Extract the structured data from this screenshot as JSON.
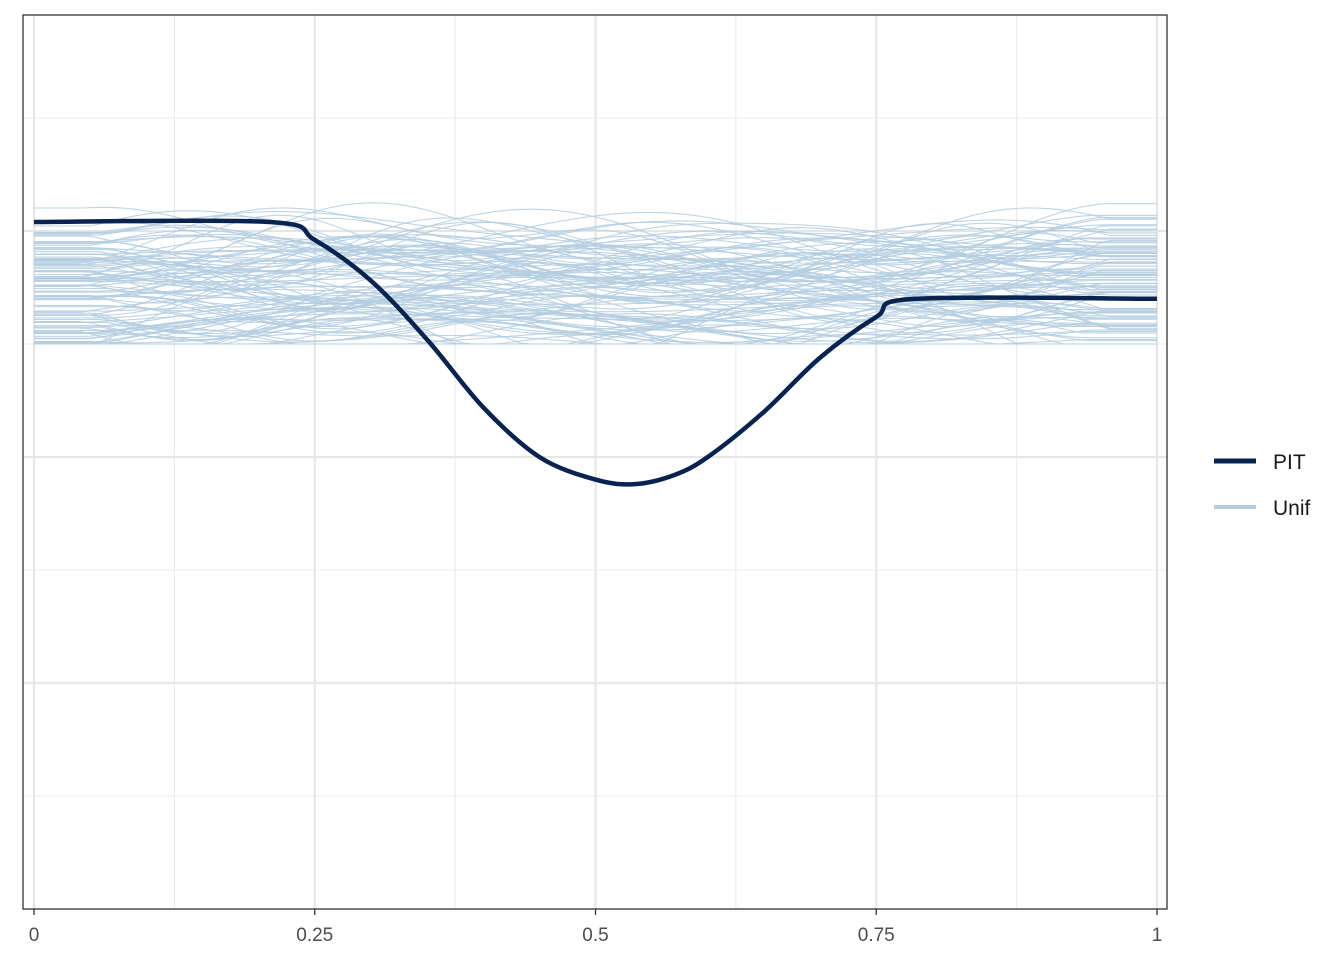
{
  "chart_data": {
    "type": "line",
    "title": "",
    "xlabel": "",
    "ylabel": "",
    "xlim": [
      0,
      1
    ],
    "x_ticks": [
      0,
      0.25,
      0.5,
      0.75,
      1
    ],
    "x_tick_labels": [
      "0",
      "0.25",
      "0.5",
      "0.75",
      "1"
    ],
    "ylim": [
      -0.5,
      1.5
    ],
    "y_ticks_unlabeled": [
      0.0,
      0.5,
      1.0
    ],
    "grid": true,
    "legend_position": "right",
    "series": [
      {
        "name": "PIT",
        "color": "#08234f",
        "x": [
          0,
          0.21,
          0.25,
          0.3,
          0.35,
          0.4,
          0.45,
          0.5,
          0.535,
          0.57,
          0.6,
          0.65,
          0.7,
          0.75,
          0.785,
          1
        ],
        "y": [
          1.02,
          1.02,
          0.98,
          0.89,
          0.76,
          0.61,
          0.5,
          0.45,
          0.44,
          0.46,
          0.5,
          0.6,
          0.72,
          0.81,
          0.85,
          0.85
        ]
      },
      {
        "name": "Unif",
        "color": "#b3cde0",
        "description_count": 100,
        "y_range": [
          0.75,
          1.1
        ]
      }
    ]
  },
  "legend": {
    "items": [
      {
        "label": "PIT",
        "color": "#08234f"
      },
      {
        "label": "Unif",
        "color": "#b3cde0"
      }
    ]
  }
}
